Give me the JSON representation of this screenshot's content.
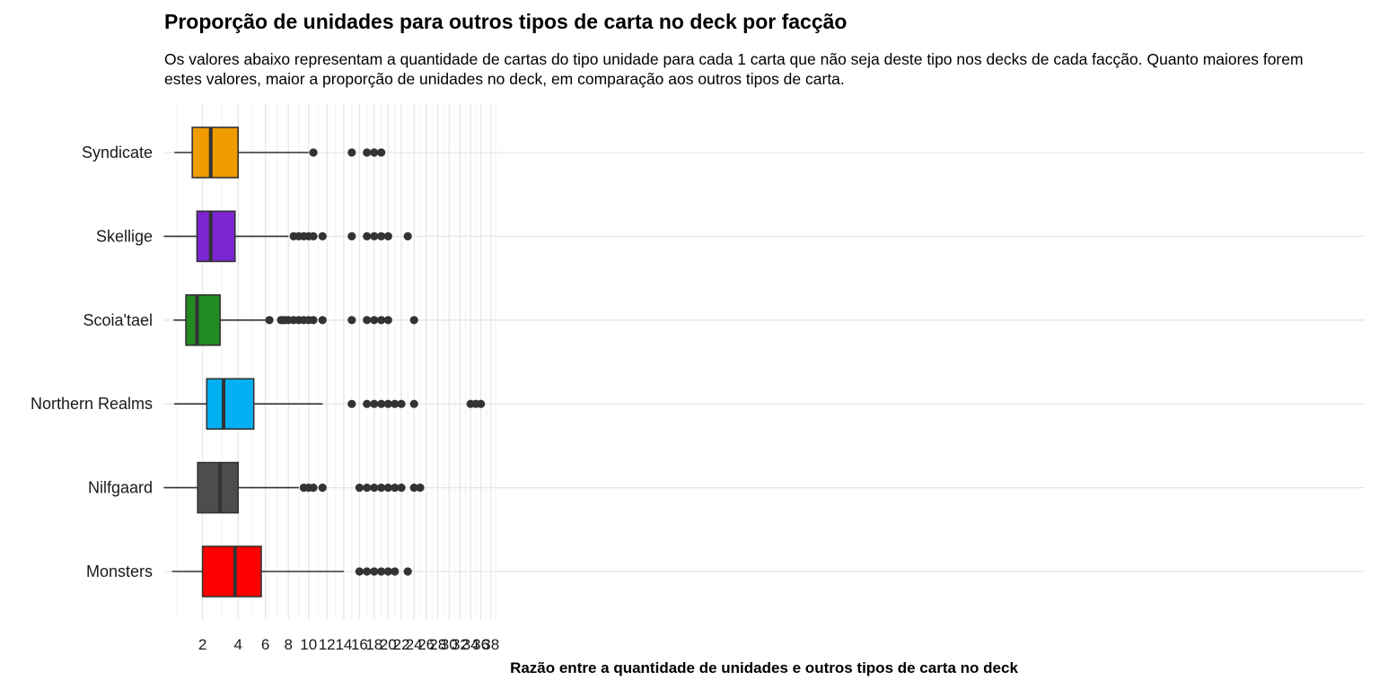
{
  "chart_data": {
    "type": "boxplot",
    "orientation": "horizontal",
    "title": "Proporção de unidades para outros tipos de carta no deck por facção",
    "subtitle": "Os valores abaixo representam a quantidade de cartas do tipo unidade para cada 1 carta que não seja deste tipo nos decks de cada facção. Quanto maiores forem estes valores, maior a proporção de unidades no deck, em comparação aos outros tipos de carta.",
    "xlabel": "Razão entre a quantidade de unidades e outros tipos de carta no deck",
    "ylabel": "",
    "x_scale": "sqrt",
    "xlim": [
      0,
      39
    ],
    "x_ticks": [
      2,
      4,
      6,
      8,
      10,
      12,
      14,
      16,
      18,
      20,
      22,
      24,
      26,
      28,
      30,
      32,
      34,
      36,
      38
    ],
    "grid": true,
    "legend": "none",
    "categories": [
      "Syndicate",
      "Skellige",
      "Scoia'tael",
      "Northern Realms",
      "Nilfgaard",
      "Monsters"
    ],
    "series": [
      {
        "category": "Syndicate",
        "color": "#F09B00",
        "whisker_low": 0.9,
        "q1": 1.55,
        "median": 2.4,
        "q3": 4.0,
        "whisker_high": 10.0,
        "outliers": [
          10.5,
          15,
          17,
          18,
          19
        ]
      },
      {
        "category": "Skellige",
        "color": "#7B26D1",
        "whisker_low": 0.6,
        "q1": 1.75,
        "median": 2.4,
        "q3": 3.8,
        "whisker_high": 8.0,
        "outliers": [
          8.5,
          9,
          9.5,
          10,
          10.5,
          11.5,
          15,
          17,
          18,
          19,
          20,
          23
        ]
      },
      {
        "category": "Scoia'tael",
        "color": "#228B22",
        "whisker_low": 0.88,
        "q1": 1.3,
        "median": 1.75,
        "q3": 2.9,
        "whisker_high": 6.0,
        "outliers": [
          6.33,
          7.33,
          7.5,
          7.67,
          8,
          8.5,
          9,
          9.5,
          10,
          10.5,
          11.5,
          15,
          17,
          18,
          19,
          20,
          24
        ]
      },
      {
        "category": "Northern Realms",
        "color": "#00B0F0",
        "whisker_low": 0.9,
        "q1": 2.2,
        "median": 3.1,
        "q3": 5.1,
        "whisker_high": 11.5,
        "outliers": [
          15,
          17,
          18,
          19,
          20,
          21,
          22,
          24,
          34,
          35,
          36
        ]
      },
      {
        "category": "Nilfgaard",
        "color": "#4D4D4D",
        "whisker_low": 0.6,
        "q1": 1.78,
        "median": 2.9,
        "q3": 4.0,
        "whisker_high": 9.0,
        "outliers": [
          9.5,
          10,
          10.5,
          11.5,
          16,
          17,
          18,
          19,
          20,
          21,
          22,
          24,
          25
        ]
      },
      {
        "category": "Monsters",
        "color": "#FF0000",
        "whisker_low": 0.83,
        "q1": 2.0,
        "median": 3.8,
        "q3": 5.67,
        "whisker_high": 14.0,
        "outliers": [
          16,
          17,
          18,
          19,
          20,
          21,
          23
        ]
      }
    ]
  }
}
